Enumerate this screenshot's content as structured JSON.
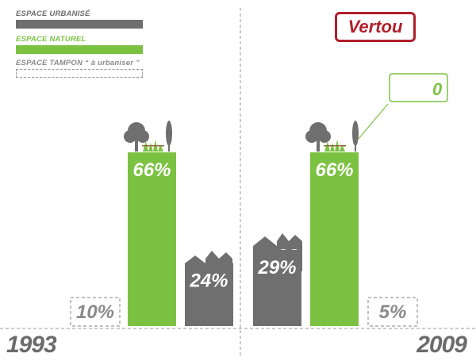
{
  "legend": {
    "urbanise": "ESPACE URBANISÉ",
    "naturel": "ESPACE NATUREL",
    "tampon": "ESPACE TAMPON “ à urbaniser ”"
  },
  "city": "Vertou",
  "callout_value": "0",
  "colors": {
    "urbanise": "#6f6f6f",
    "naturel": "#7cc242",
    "tampon": "#9a9a9a",
    "city": "#b21e2a"
  },
  "chart_data": [
    {
      "type": "bar",
      "year": "1993",
      "categories": [
        "ESPACE TAMPON “ à urbaniser ”",
        "ESPACE NATUREL",
        "ESPACE URBANISÉ"
      ],
      "values": [
        10,
        66,
        24
      ],
      "labels": [
        "10%",
        "66%",
        "24%"
      ],
      "ylim": [
        0,
        100
      ]
    },
    {
      "type": "bar",
      "year": "2009",
      "categories": [
        "ESPACE URBANISÉ",
        "ESPACE NATUREL",
        "ESPACE TAMPON “ à urbaniser ”"
      ],
      "values": [
        29,
        66,
        5
      ],
      "labels": [
        "29%",
        "66%",
        "5%"
      ],
      "ylim": [
        0,
        100
      ]
    }
  ]
}
